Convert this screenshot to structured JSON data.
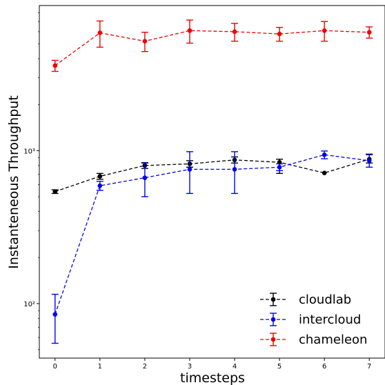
{
  "chart_data": {
    "type": "line",
    "title": "",
    "xlabel": "timesteps",
    "ylabel": "Instanteneous Throughput",
    "x": [
      0,
      1,
      2,
      3,
      4,
      5,
      6,
      7
    ],
    "xlim": [
      -0.35,
      7.35
    ],
    "ylim": [
      44,
      8900
    ],
    "yscale": "log",
    "ytick_values": [
      100,
      1000
    ],
    "ytick_labels": [
      "10²",
      "10³"
    ],
    "grid": false,
    "legend_position": "lower-right",
    "series": [
      {
        "name": "cloudlab",
        "color": "#000000",
        "linestyle": "dashed",
        "marker": "circle",
        "values": [
          540,
          680,
          800,
          820,
          870,
          840,
          715,
          880
        ],
        "err_low": [
          15,
          30,
          35,
          40,
          40,
          130,
          0,
          50
        ],
        "err_high": [
          15,
          30,
          35,
          40,
          40,
          40,
          0,
          70
        ]
      },
      {
        "name": "intercloud",
        "color": "#0000ee",
        "linestyle": "dashed",
        "marker": "circle",
        "values": [
          85,
          590,
          665,
          755,
          755,
          780,
          940,
          860
        ],
        "err_low": [
          30,
          40,
          165,
          230,
          230,
          40,
          55,
          80
        ],
        "err_high": [
          30,
          40,
          165,
          230,
          230,
          40,
          55,
          80
        ]
      },
      {
        "name": "chameleon",
        "color": "#ee0000",
        "linestyle": "dashed",
        "marker": "circle",
        "values": [
          3600,
          5900,
          5200,
          6100,
          6000,
          5800,
          6100,
          5950
        ],
        "err_low": [
          300,
          1150,
          750,
          1050,
          800,
          600,
          900,
          500
        ],
        "err_high": [
          300,
          1150,
          750,
          1050,
          800,
          600,
          900,
          500
        ]
      }
    ]
  }
}
